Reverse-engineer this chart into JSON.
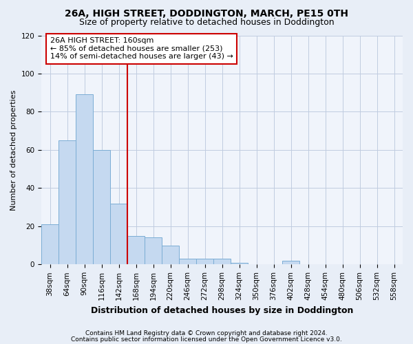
{
  "title1": "26A, HIGH STREET, DODDINGTON, MARCH, PE15 0TH",
  "title2": "Size of property relative to detached houses in Doddington",
  "xlabel": "Distribution of detached houses by size in Doddington",
  "ylabel": "Number of detached properties",
  "categories": [
    "38sqm",
    "64sqm",
    "90sqm",
    "116sqm",
    "142sqm",
    "168sqm",
    "194sqm",
    "220sqm",
    "246sqm",
    "272sqm",
    "298sqm",
    "324sqm",
    "350sqm",
    "376sqm",
    "402sqm",
    "428sqm",
    "454sqm",
    "480sqm",
    "506sqm",
    "532sqm",
    "558sqm"
  ],
  "values": [
    21,
    65,
    89,
    60,
    32,
    15,
    14,
    10,
    3,
    3,
    3,
    1,
    0,
    0,
    2,
    0,
    0,
    0,
    0,
    0,
    0
  ],
  "bar_color": "#c5d9f0",
  "bar_edge_color": "#7badd4",
  "vline_color": "#cc0000",
  "ylim": [
    0,
    120
  ],
  "yticks": [
    0,
    20,
    40,
    60,
    80,
    100,
    120
  ],
  "annotation_text": "26A HIGH STREET: 160sqm\n← 85% of detached houses are smaller (253)\n14% of semi-detached houses are larger (43) →",
  "annotation_box_color": "white",
  "annotation_box_edge_color": "#cc0000",
  "footer1": "Contains HM Land Registry data © Crown copyright and database right 2024.",
  "footer2": "Contains public sector information licensed under the Open Government Licence v3.0.",
  "fig_facecolor": "#e8eef7",
  "plot_facecolor": "#f0f4fb",
  "grid_color": "#c0cce0",
  "title1_fontsize": 10,
  "title2_fontsize": 9,
  "xlabel_fontsize": 9,
  "ylabel_fontsize": 8,
  "tick_fontsize": 7.5,
  "footer_fontsize": 6.5,
  "ann_fontsize": 8
}
